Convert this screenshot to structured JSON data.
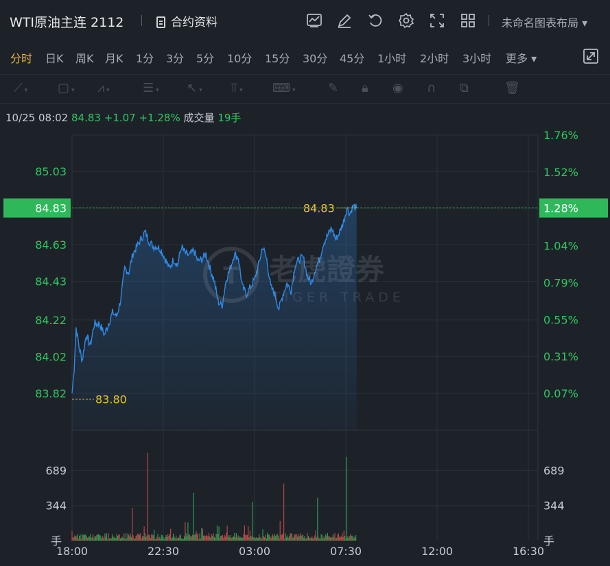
{
  "header": {
    "title": "WTI原油主连 2112",
    "contract_label": "合约资料",
    "layout_label": "未命名图表布局",
    "tool_icons": [
      "indicator-icon",
      "draw-edit-icon",
      "reset-icon",
      "settings-icon",
      "fullscreen-icon",
      "grid-layout-icon"
    ]
  },
  "periods": {
    "items": [
      "分时",
      "日K",
      "周K",
      "月K",
      "1分",
      "3分",
      "5分",
      "10分",
      "15分",
      "30分",
      "45分",
      "1小时",
      "2小时",
      "3小时",
      "更多"
    ],
    "active": "分时"
  },
  "info": {
    "datetime": "10/25 08:02",
    "price": "84.83",
    "change": "+1.07",
    "change_pct": "+1.28%",
    "volume_label": "成交量",
    "volume": "19手"
  },
  "watermark": {
    "cn": "老虎證券",
    "en": "TIGER TRADE"
  },
  "colors": {
    "up": "#2fc85e",
    "line": "#2f8ae6",
    "marker": "#e9c12f",
    "down": "#e35a5a"
  },
  "chart_data": [
    {
      "type": "area",
      "y_left_ticks": [
        "85.03",
        "84.83",
        "84.63",
        "84.43",
        "84.22",
        "84.02",
        "83.82"
      ],
      "y_right_ticks": [
        "1.76%",
        "1.52%",
        "1.28%",
        "1.04%",
        "0.79%",
        "0.55%",
        "0.31%",
        "0.07%"
      ],
      "x_ticks": [
        "18:00",
        "22:30",
        "03:00",
        "07:30",
        "12:00",
        "16:30"
      ],
      "ylim": [
        83.82,
        85.03
      ],
      "current_price_label": "84.83",
      "current_price_right_label": "1.28%",
      "high_annotation": "84.83",
      "low_annotation": "83.80",
      "series": [
        {
          "x_hours": [
            0,
            0.1,
            0.2,
            0.35,
            0.5,
            0.7,
            0.9,
            1.1,
            1.35,
            1.6,
            1.8,
            2.0,
            2.2,
            2.4,
            2.6,
            2.8,
            3.0,
            3.2,
            3.4,
            3.6,
            3.8,
            4.0,
            4.2,
            4.4,
            4.6,
            4.8,
            5.0,
            5.2,
            5.4,
            5.6,
            5.8,
            6.0,
            6.2,
            6.4,
            6.6,
            6.8,
            7.0,
            7.2,
            7.4,
            7.6,
            7.8,
            8.0,
            8.2,
            8.4,
            8.6,
            8.8,
            9.0,
            9.2,
            9.4,
            9.6,
            9.8,
            10.0,
            10.2,
            10.4,
            10.6,
            10.8,
            11.0,
            11.2,
            11.4,
            11.6,
            11.8,
            12.0,
            12.2,
            12.4,
            12.6,
            12.8,
            13.0,
            13.2,
            13.4,
            13.55,
            13.7,
            13.85,
            14.03
          ],
          "values": [
            83.82,
            83.95,
            84.18,
            84.07,
            84.0,
            84.14,
            84.08,
            84.2,
            84.2,
            84.14,
            84.2,
            84.26,
            84.24,
            84.33,
            84.5,
            84.48,
            84.58,
            84.62,
            84.66,
            84.7,
            84.65,
            84.62,
            84.62,
            84.6,
            84.55,
            84.5,
            84.55,
            84.52,
            84.62,
            84.58,
            84.57,
            84.6,
            84.54,
            84.55,
            84.58,
            84.5,
            84.44,
            84.32,
            84.3,
            84.44,
            84.5,
            84.58,
            84.56,
            84.4,
            84.36,
            84.4,
            84.44,
            84.52,
            84.62,
            84.55,
            84.4,
            84.36,
            84.28,
            84.36,
            84.42,
            84.38,
            84.52,
            84.55,
            84.56,
            84.46,
            84.42,
            84.5,
            84.55,
            84.64,
            84.68,
            84.72,
            84.66,
            84.7,
            84.76,
            84.83,
            84.8,
            84.84,
            84.83
          ]
        }
      ]
    },
    {
      "type": "bar",
      "y_left_ticks": [
        "689",
        "344",
        "手"
      ],
      "y_right_ticks": [
        "689",
        "344",
        "手"
      ],
      "ylim": [
        0,
        1000
      ],
      "series": [
        {
          "name": "volume",
          "seed_peaks": [
            {
              "x_hours": 3.75,
              "value": 860
            },
            {
              "x_hours": 13.55,
              "value": 820
            },
            {
              "x_hours": 6.0,
              "value": 470
            },
            {
              "x_hours": 2.95,
              "value": 320
            },
            {
              "x_hours": 10.45,
              "value": 560
            },
            {
              "x_hours": 12.1,
              "value": 420
            },
            {
              "x_hours": 8.9,
              "value": 380
            }
          ]
        }
      ]
    }
  ]
}
